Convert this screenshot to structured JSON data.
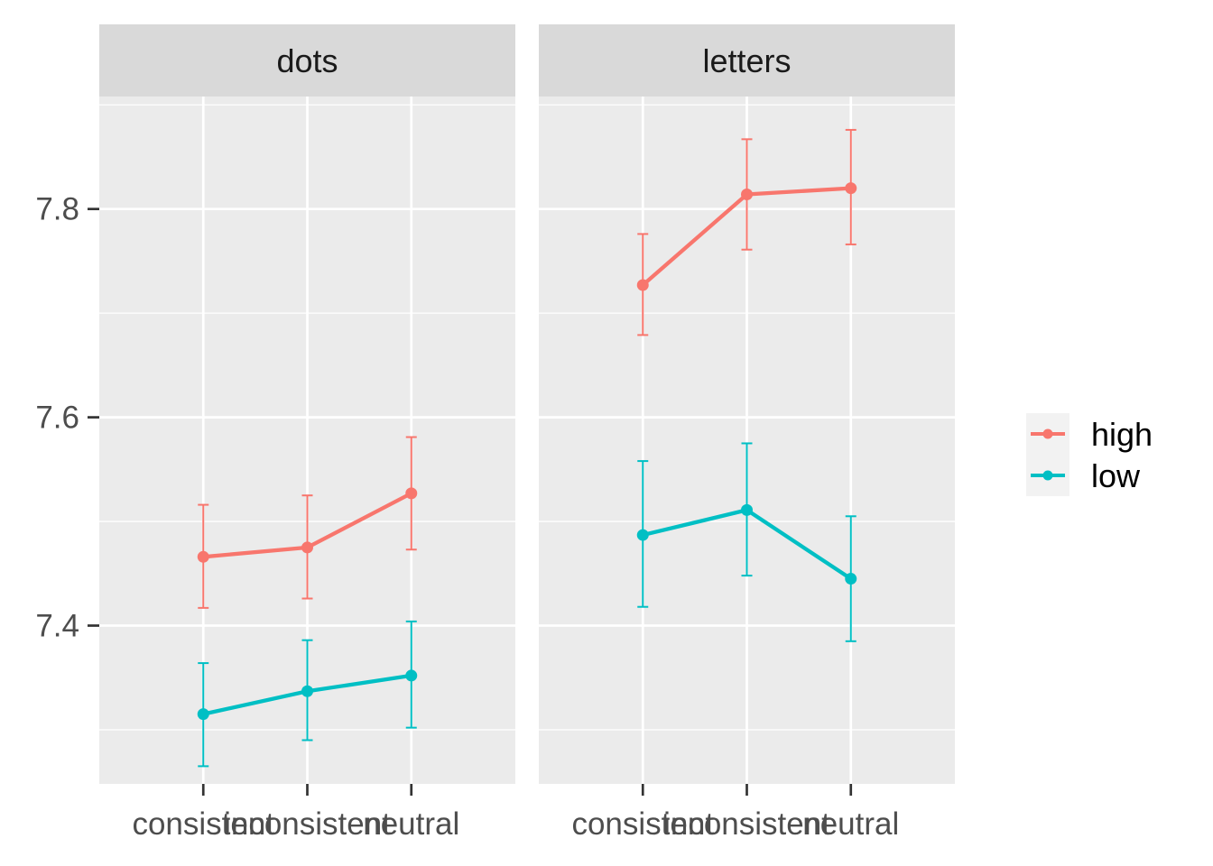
{
  "chart_data": {
    "type": "line",
    "facets": [
      {
        "label": "dots",
        "series": [
          {
            "name": "high",
            "values": [
              7.466,
              7.475,
              7.527
            ],
            "lower": [
              7.417,
              7.426,
              7.473
            ],
            "upper": [
              7.516,
              7.525,
              7.581
            ]
          },
          {
            "name": "low",
            "values": [
              7.315,
              7.337,
              7.352
            ],
            "lower": [
              7.265,
              7.29,
              7.302
            ],
            "upper": [
              7.364,
              7.386,
              7.404
            ]
          }
        ]
      },
      {
        "label": "letters",
        "series": [
          {
            "name": "high",
            "values": [
              7.727,
              7.814,
              7.82
            ],
            "lower": [
              7.679,
              7.761,
              7.766
            ],
            "upper": [
              7.776,
              7.867,
              7.876
            ]
          },
          {
            "name": "low",
            "values": [
              7.487,
              7.511,
              7.445
            ],
            "lower": [
              7.418,
              7.448,
              7.385
            ],
            "upper": [
              7.558,
              7.575,
              7.505
            ]
          }
        ]
      }
    ],
    "categories": [
      "consistent",
      "inconsistent",
      "neutral"
    ],
    "xlabel": "",
    "ylabel": "",
    "ylim": [
      7.248,
      7.908
    ],
    "yticks": [
      "7.4",
      "7.6",
      "7.8"
    ],
    "ytick_values": [
      7.4,
      7.6,
      7.8
    ],
    "grid": true,
    "legend": {
      "position": "right",
      "entries": [
        "high",
        "low"
      ]
    },
    "colors": {
      "high": "#F8766D",
      "low": "#00BFC4",
      "panel": "#EBEBEB",
      "strip": "#D9D9D9",
      "grid": "#FFFFFF",
      "axis": "#333333"
    }
  }
}
